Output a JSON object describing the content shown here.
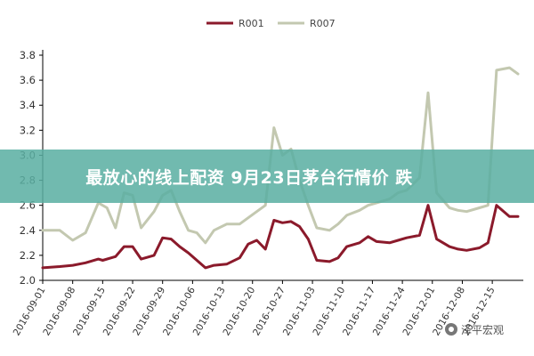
{
  "banner": {
    "text": "最放心的线上配资 9月23日茅台行情价 跌"
  },
  "watermark": {
    "text": "泽平宏观",
    "icon": "wechat-icon"
  },
  "colors": {
    "r001": "#8b1a2b",
    "r007": "#c3c8b0",
    "axis": "#000000",
    "grid": "#d9d9d9"
  },
  "chart_data": {
    "type": "line",
    "title": "",
    "xlabel": "",
    "ylabel": "",
    "ylim": [
      2.0,
      3.8
    ],
    "yticks": [
      "2.0",
      "2.2",
      "2.4",
      "2.6",
      "2.8",
      "3.0",
      "3.2",
      "3.4",
      "3.6",
      "3.8"
    ],
    "grid": false,
    "legend_position": "top-center",
    "x_tick_labels": [
      "2016-09-01",
      "2016-09-08",
      "2016-09-15",
      "2016-09-22",
      "2016-09-29",
      "2016-10-06",
      "2016-10-13",
      "2016-10-20",
      "2016-10-27",
      "2016-11-03",
      "2016-11-10",
      "2016-11-17",
      "2016-11-24",
      "2016-12-01",
      "2016-12-08",
      "2016-12-15"
    ],
    "x_start": "2016-09-01",
    "x_end": "2016-12-21",
    "series": [
      {
        "name": "R001",
        "points": [
          [
            "2016-09-01",
            2.1
          ],
          [
            "2016-09-05",
            2.11
          ],
          [
            "2016-09-08",
            2.12
          ],
          [
            "2016-09-11",
            2.14
          ],
          [
            "2016-09-14",
            2.17
          ],
          [
            "2016-09-15",
            2.16
          ],
          [
            "2016-09-18",
            2.19
          ],
          [
            "2016-09-20",
            2.27
          ],
          [
            "2016-09-22",
            2.27
          ],
          [
            "2016-09-24",
            2.17
          ],
          [
            "2016-09-27",
            2.2
          ],
          [
            "2016-09-29",
            2.34
          ],
          [
            "2016-10-01",
            2.33
          ],
          [
            "2016-10-03",
            2.27
          ],
          [
            "2016-10-05",
            2.22
          ],
          [
            "2016-10-07",
            2.16
          ],
          [
            "2016-10-09",
            2.1
          ],
          [
            "2016-10-11",
            2.12
          ],
          [
            "2016-10-14",
            2.13
          ],
          [
            "2016-10-17",
            2.18
          ],
          [
            "2016-10-19",
            2.29
          ],
          [
            "2016-10-21",
            2.32
          ],
          [
            "2016-10-23",
            2.25
          ],
          [
            "2016-10-25",
            2.48
          ],
          [
            "2016-10-27",
            2.46
          ],
          [
            "2016-10-29",
            2.47
          ],
          [
            "2016-10-31",
            2.43
          ],
          [
            "2016-11-02",
            2.33
          ],
          [
            "2016-11-04",
            2.16
          ],
          [
            "2016-11-07",
            2.15
          ],
          [
            "2016-11-09",
            2.18
          ],
          [
            "2016-11-11",
            2.27
          ],
          [
            "2016-11-14",
            2.3
          ],
          [
            "2016-11-16",
            2.35
          ],
          [
            "2016-11-18",
            2.31
          ],
          [
            "2016-11-21",
            2.3
          ],
          [
            "2016-11-23",
            2.32
          ],
          [
            "2016-11-25",
            2.34
          ],
          [
            "2016-11-28",
            2.36
          ],
          [
            "2016-11-30",
            2.6
          ],
          [
            "2016-12-02",
            2.33
          ],
          [
            "2016-12-05",
            2.27
          ],
          [
            "2016-12-07",
            2.25
          ],
          [
            "2016-12-09",
            2.24
          ],
          [
            "2016-12-12",
            2.26
          ],
          [
            "2016-12-14",
            2.3
          ],
          [
            "2016-12-16",
            2.6
          ],
          [
            "2016-12-19",
            2.51
          ],
          [
            "2016-12-21",
            2.51
          ]
        ]
      },
      {
        "name": "R007",
        "points": [
          [
            "2016-09-01",
            2.4
          ],
          [
            "2016-09-05",
            2.4
          ],
          [
            "2016-09-08",
            2.32
          ],
          [
            "2016-09-11",
            2.38
          ],
          [
            "2016-09-14",
            2.62
          ],
          [
            "2016-09-16",
            2.58
          ],
          [
            "2016-09-18",
            2.42
          ],
          [
            "2016-09-20",
            2.7
          ],
          [
            "2016-09-22",
            2.68
          ],
          [
            "2016-09-24",
            2.42
          ],
          [
            "2016-09-27",
            2.55
          ],
          [
            "2016-09-29",
            2.68
          ],
          [
            "2016-10-01",
            2.72
          ],
          [
            "2016-10-03",
            2.55
          ],
          [
            "2016-10-05",
            2.4
          ],
          [
            "2016-10-07",
            2.38
          ],
          [
            "2016-10-09",
            2.3
          ],
          [
            "2016-10-11",
            2.4
          ],
          [
            "2016-10-14",
            2.45
          ],
          [
            "2016-10-17",
            2.45
          ],
          [
            "2016-10-19",
            2.5
          ],
          [
            "2016-10-21",
            2.55
          ],
          [
            "2016-10-23",
            2.6
          ],
          [
            "2016-10-25",
            3.22
          ],
          [
            "2016-10-27",
            3.0
          ],
          [
            "2016-10-29",
            3.05
          ],
          [
            "2016-10-31",
            2.8
          ],
          [
            "2016-11-02",
            2.6
          ],
          [
            "2016-11-04",
            2.42
          ],
          [
            "2016-11-07",
            2.4
          ],
          [
            "2016-11-09",
            2.45
          ],
          [
            "2016-11-11",
            2.52
          ],
          [
            "2016-11-14",
            2.56
          ],
          [
            "2016-11-16",
            2.6
          ],
          [
            "2016-11-18",
            2.62
          ],
          [
            "2016-11-21",
            2.65
          ],
          [
            "2016-11-23",
            2.7
          ],
          [
            "2016-11-25",
            2.72
          ],
          [
            "2016-11-28",
            2.82
          ],
          [
            "2016-11-30",
            3.5
          ],
          [
            "2016-12-02",
            2.7
          ],
          [
            "2016-12-05",
            2.58
          ],
          [
            "2016-12-07",
            2.56
          ],
          [
            "2016-12-09",
            2.55
          ],
          [
            "2016-12-12",
            2.58
          ],
          [
            "2016-12-14",
            2.6
          ],
          [
            "2016-12-16",
            3.68
          ],
          [
            "2016-12-19",
            3.7
          ],
          [
            "2016-12-21",
            3.65
          ]
        ]
      }
    ]
  }
}
